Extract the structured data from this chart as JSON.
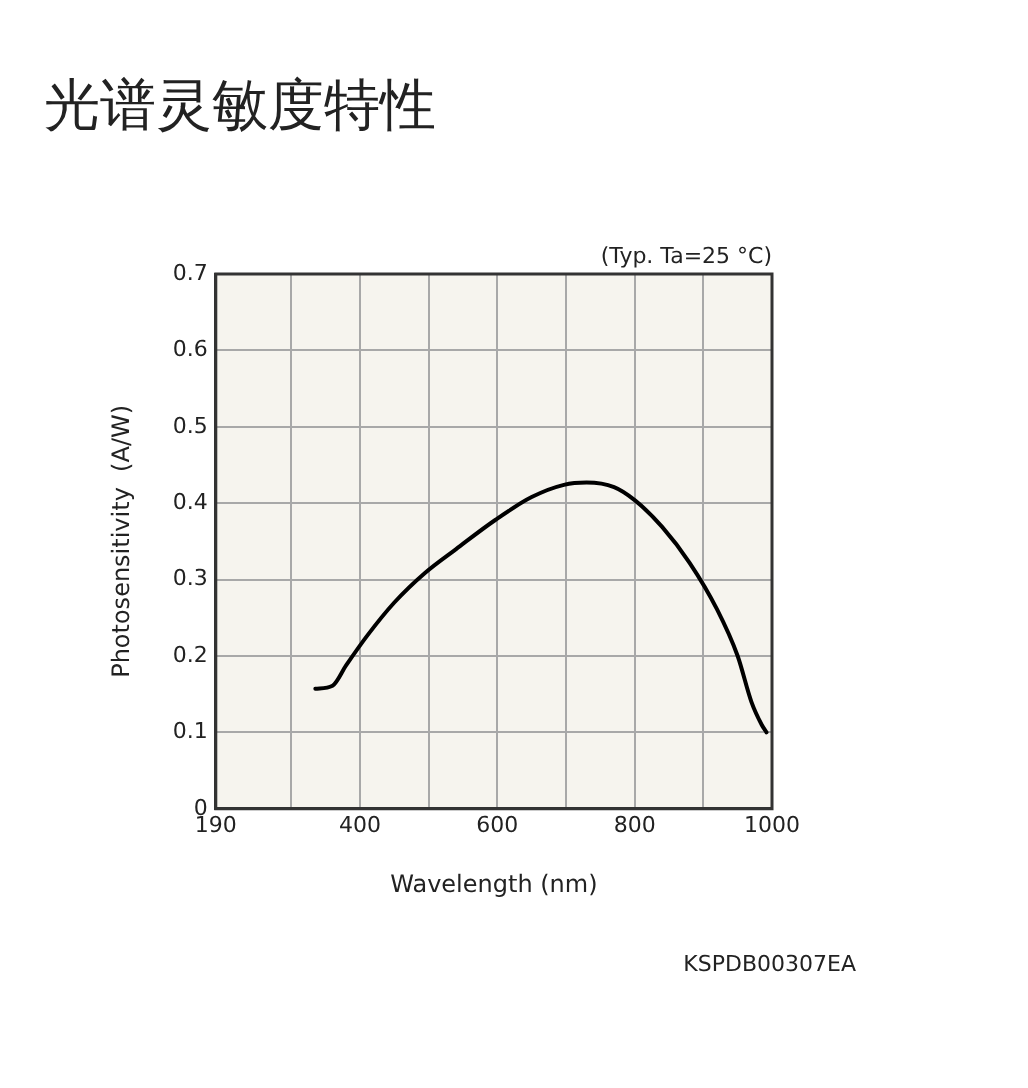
{
  "chart_data": {
    "type": "line",
    "title": "光谱灵敏度特性",
    "xlabel": "Wavelength (nm)",
    "ylabel": "Photosensitivity  (A/W)",
    "annotations": [
      "(Typ. Ta=25 °C)",
      "KSPDB00307EA"
    ],
    "x": [
      335,
      360,
      380,
      410,
      450,
      495,
      540,
      597,
      650,
      697,
      730,
      770,
      800,
      840,
      880,
      920,
      950,
      970,
      985,
      992
    ],
    "series": [
      {
        "color": "#000000",
        "values": [
          0.157,
          0.161,
          0.188,
          0.226,
          0.27,
          0.309,
          0.34,
          0.378,
          0.408,
          0.424,
          0.427,
          0.421,
          0.404,
          0.369,
          0.322,
          0.261,
          0.2,
          0.14,
          0.11,
          0.1
        ]
      }
    ],
    "xlim": [
      190,
      1000
    ],
    "xticks": [
      190,
      {
        "value": 300,
        "label": null
      },
      400,
      {
        "value": 500,
        "label": null
      },
      600,
      {
        "value": 700,
        "label": null
      },
      800,
      {
        "value": 900,
        "label": null
      },
      1000
    ],
    "ylim": [
      0,
      0.7
    ],
    "yticks": [
      0,
      0.1,
      0.2,
      0.3,
      0.4,
      0.5,
      0.6,
      0.7
    ],
    "grid": true,
    "legend": false,
    "marker": "none",
    "line_style": "solid"
  }
}
